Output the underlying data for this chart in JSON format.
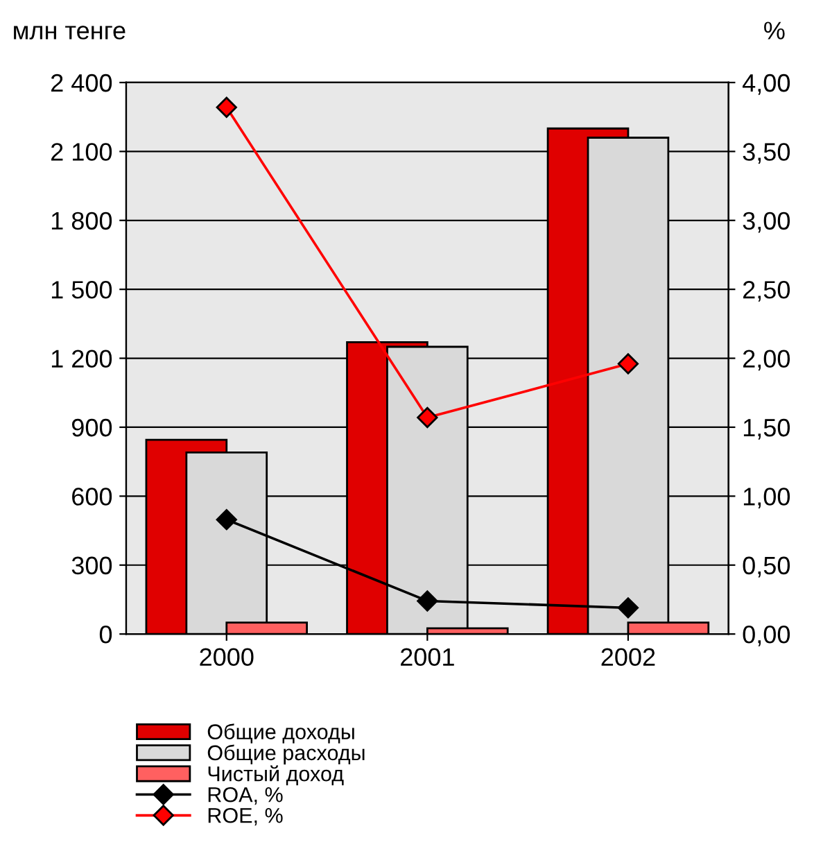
{
  "chart_data": {
    "type": "bar",
    "ylabel": "млн тенге",
    "y2label": "%",
    "categories": [
      "2000",
      "2001",
      "2002"
    ],
    "series": [
      {
        "name": "Общие доходы",
        "color": "#e00000",
        "values": [
          845,
          1270,
          2200
        ]
      },
      {
        "name": "Общие расходы",
        "color": "#d9d9d9",
        "values": [
          790,
          1250,
          2160
        ]
      },
      {
        "name": "Чистый доход",
        "color": "#ff6060",
        "values": [
          50,
          25,
          50
        ]
      },
      {
        "name": "ROA, %",
        "type": "line",
        "axis": "y2",
        "color": "#000000",
        "values": [
          0.83,
          0.24,
          0.19
        ]
      },
      {
        "name": "ROE, %",
        "type": "line",
        "axis": "y2",
        "color": "#ff0000",
        "values": [
          3.82,
          1.57,
          1.96
        ]
      }
    ],
    "ylim": [
      0,
      2400
    ],
    "yticks": [
      {
        "value": 0,
        "label": "0"
      },
      {
        "value": 300,
        "label": "300"
      },
      {
        "value": 600,
        "label": "600"
      },
      {
        "value": 900,
        "label": "900"
      },
      {
        "value": 1200,
        "label": "1 200"
      },
      {
        "value": 1500,
        "label": "1 500"
      },
      {
        "value": 1800,
        "label": "1 800"
      },
      {
        "value": 2100,
        "label": "2 100"
      },
      {
        "value": 2400,
        "label": "2 400"
      }
    ],
    "y2lim": [
      0,
      4
    ],
    "y2ticks": [
      {
        "value": 0,
        "label": "0,00"
      },
      {
        "value": 0.5,
        "label": "0,50"
      },
      {
        "value": 1,
        "label": "1,00"
      },
      {
        "value": 1.5,
        "label": "1,50"
      },
      {
        "value": 2,
        "label": "2,00"
      },
      {
        "value": 2.5,
        "label": "2,50"
      },
      {
        "value": 3,
        "label": "3,00"
      },
      {
        "value": 3.5,
        "label": "3,50"
      },
      {
        "value": 4,
        "label": "4,00"
      }
    ],
    "grid": "y",
    "legend": "bottom",
    "marker": "diamond",
    "line_style": "solid"
  }
}
